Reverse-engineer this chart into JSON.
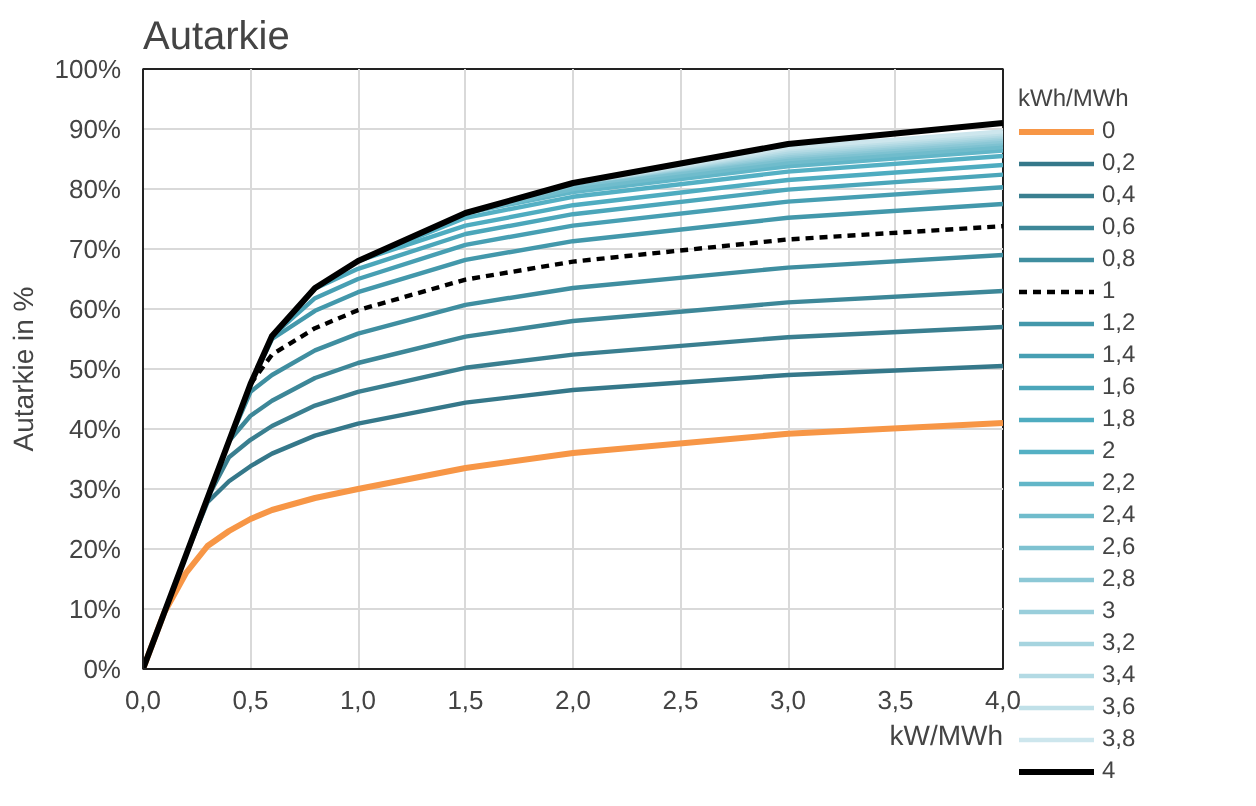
{
  "chart_data": {
    "type": "line",
    "title": "Autarkie",
    "ylabel": "Autarkie in %",
    "xlabel": "kW/MWh",
    "legend_title": "kWh/MWh",
    "legend": "right",
    "grid": true,
    "x": [
      0,
      0.1,
      0.2,
      0.3,
      0.4,
      0.5,
      0.6,
      0.8,
      1,
      1.5,
      2,
      3,
      4
    ],
    "xlim": [
      0,
      4
    ],
    "xticks": [
      {
        "value": 0,
        "label": "0,0"
      },
      {
        "value": 0.5,
        "label": "0,5"
      },
      {
        "value": 1,
        "label": "1,0"
      },
      {
        "value": 1.5,
        "label": "1,5"
      },
      {
        "value": 2,
        "label": "2,0"
      },
      {
        "value": 2.5,
        "label": "2,5"
      },
      {
        "value": 3,
        "label": "3,0"
      },
      {
        "value": 3.5,
        "label": "3,5"
      },
      {
        "value": 4,
        "label": "4,0"
      }
    ],
    "ylim": [
      0,
      100
    ],
    "yticks": [
      {
        "value": 0,
        "label": "0%"
      },
      {
        "value": 10,
        "label": "10%"
      },
      {
        "value": 20,
        "label": "20%"
      },
      {
        "value": 30,
        "label": "30%"
      },
      {
        "value": 40,
        "label": "40%"
      },
      {
        "value": 50,
        "label": "50%"
      },
      {
        "value": 60,
        "label": "60%"
      },
      {
        "value": 70,
        "label": "70%"
      },
      {
        "value": 80,
        "label": "80%"
      },
      {
        "value": 90,
        "label": "90%"
      },
      {
        "value": 100,
        "label": "100%"
      }
    ],
    "series": [
      {
        "name": "0",
        "color": "#f79646",
        "values": [
          0,
          9.5,
          16,
          20.5,
          23,
          25,
          26.5,
          28.5,
          30,
          33.5,
          36,
          39.2,
          41
        ]
      },
      {
        "name": "0,2",
        "color": "#35788a",
        "x": [
          0.2,
          0.3,
          0.4,
          0.5,
          0.6,
          0.8,
          1,
          1.5,
          2,
          3,
          4
        ],
        "values": [
          19,
          27.8,
          31.3,
          33.8,
          35.9,
          38.9,
          40.9,
          44.4,
          46.5,
          49.0,
          50.5
        ]
      },
      {
        "name": "0,4",
        "color": "#3a7f90",
        "x": [
          0.3,
          0.4,
          0.5,
          0.6,
          0.8,
          1,
          1.5,
          2,
          3,
          4
        ],
        "values": [
          28.5,
          35.3,
          38.2,
          40.5,
          43.9,
          46.2,
          50.2,
          52.4,
          55.3,
          57
        ]
      },
      {
        "name": "0,6",
        "color": "#3d8798",
        "x": [
          0.4,
          0.5,
          0.6,
          0.8,
          1,
          1.5,
          2,
          3,
          4
        ],
        "values": [
          38,
          42.2,
          44.7,
          48.5,
          51.0,
          55.4,
          58.0,
          61.1,
          63
        ]
      },
      {
        "name": "0,8",
        "color": "#3f8ea0",
        "x": [
          0.4,
          0.5,
          0.6,
          0.8,
          1,
          1.5,
          2,
          3,
          4
        ],
        "values": [
          38,
          46.2,
          49.0,
          53.1,
          55.9,
          60.7,
          63.5,
          66.9,
          69
        ]
      },
      {
        "name": "1",
        "color": "#000000",
        "line_style": "dashed",
        "x": [
          0.5,
          0.6,
          0.8,
          1,
          1.5,
          2,
          3,
          4
        ],
        "values": [
          47.5,
          52.4,
          56.8,
          59.8,
          64.9,
          67.9,
          71.6,
          73.8
        ]
      },
      {
        "name": "1,2",
        "color": "#4398ab",
        "x": [
          0.5,
          0.6,
          0.8,
          1,
          1.5,
          2,
          3,
          4
        ],
        "values": [
          47.5,
          55.0,
          59.7,
          62.8,
          68.2,
          71.3,
          75.2,
          77.5
        ]
      },
      {
        "name": "1,4",
        "color": "#479fb3",
        "x": [
          0.6,
          0.8,
          1,
          1.5,
          2,
          3,
          4
        ],
        "values": [
          55.5,
          61.8,
          65.0,
          70.7,
          73.9,
          77.9,
          80.3
        ]
      },
      {
        "name": "1,6",
        "color": "#4ba6ba",
        "x": [
          0.6,
          0.8,
          1,
          1.5,
          2,
          3,
          4
        ],
        "values": [
          55.5,
          63.4,
          66.7,
          72.5,
          75.8,
          79.9,
          82.4
        ]
      },
      {
        "name": "1,8",
        "color": "#4eacc0",
        "x": [
          0.8,
          1,
          1.5,
          2,
          3,
          4
        ],
        "values": [
          63.5,
          68.0,
          73.9,
          77.3,
          81.5,
          84
        ]
      },
      {
        "name": "2",
        "color": "#54b0c4",
        "x": [
          1,
          1.5,
          2,
          3,
          4
        ],
        "values": [
          68,
          75.2,
          78.7,
          82.9,
          85.5
        ]
      },
      {
        "name": "2,2",
        "color": "#62b6c8",
        "x": [
          1,
          1.5,
          2,
          3,
          4
        ],
        "values": [
          68,
          76.0,
          79.5,
          83.8,
          86.4
        ]
      },
      {
        "name": "2,4",
        "color": "#70bccc",
        "x": [
          1.5,
          2,
          3,
          4
        ],
        "values": [
          76,
          80.0,
          84.4,
          87
        ]
      },
      {
        "name": "2,6",
        "color": "#7ec2d1",
        "x": [
          1.5,
          2,
          3,
          4
        ],
        "values": [
          76,
          80.6,
          85.0,
          87.6
        ]
      },
      {
        "name": "2,8",
        "color": "#8cc8d6",
        "x": [
          2,
          3,
          4
        ],
        "values": [
          81,
          85.4,
          88
        ]
      },
      {
        "name": "3",
        "color": "#99cedb",
        "x": [
          2,
          3,
          4
        ],
        "values": [
          81,
          85.7,
          88.4
        ]
      },
      {
        "name": "3,2",
        "color": "#a6d4df",
        "x": [
          2,
          3,
          4
        ],
        "values": [
          81,
          86.0,
          88.7
        ]
      },
      {
        "name": "3,4",
        "color": "#b3dae4",
        "x": [
          2,
          3,
          4
        ],
        "values": [
          81,
          86.3,
          89
        ]
      },
      {
        "name": "3,6",
        "color": "#c0e0e8",
        "x": [
          2,
          3,
          4
        ],
        "values": [
          81,
          86.6,
          89.3
        ]
      },
      {
        "name": "3,8",
        "color": "#cde6ed",
        "x": [
          2,
          3,
          4
        ],
        "values": [
          81,
          86.9,
          89.6
        ]
      },
      {
        "name": "4",
        "color": "#000000",
        "values": [
          0,
          9.5,
          19,
          28.5,
          38,
          47.5,
          55.5,
          63.5,
          68,
          76,
          81,
          87.5,
          91
        ]
      }
    ]
  }
}
